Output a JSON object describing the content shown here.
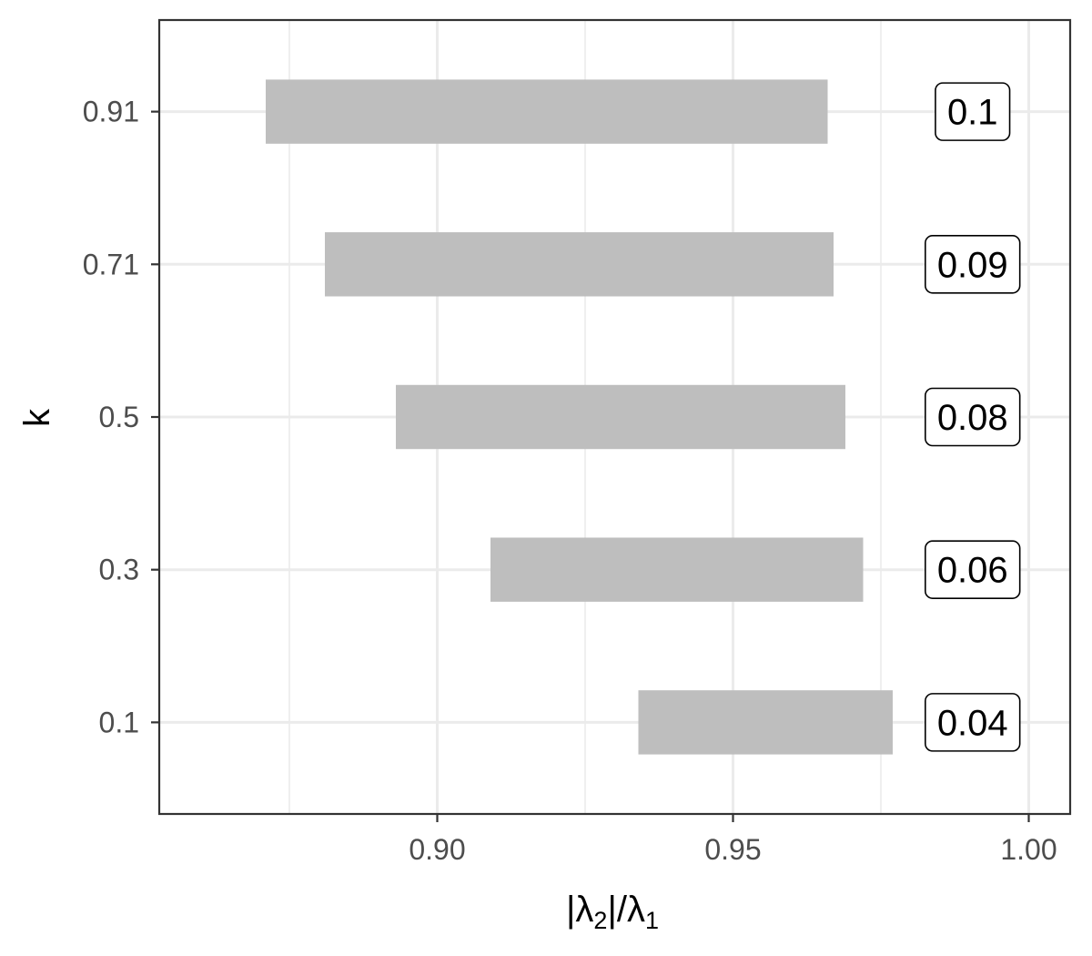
{
  "chart_data": {
    "type": "bar",
    "orientation": "horizontal-floating",
    "title": "",
    "xlabel": "|λ2|/λ1",
    "xlabel_parts": {
      "bar": "|",
      "lambda2": "λ",
      "sub2": "2",
      "slash": "|/",
      "lambda1": "λ",
      "sub1": "1"
    },
    "ylabel": "k",
    "xlim": [
      0.853,
      1.007
    ],
    "x_ticks": [
      0.9,
      0.95,
      1.0
    ],
    "x_tick_labels": [
      "0.90",
      "0.95",
      "1.00"
    ],
    "x_minor_gridlines": [
      0.875,
      0.925,
      0.975
    ],
    "categories": [
      "0.1",
      "0.3",
      "0.5",
      "0.71",
      "0.91"
    ],
    "bars": [
      {
        "k": "0.1",
        "start": 0.934,
        "end": 0.977,
        "label": "0.04"
      },
      {
        "k": "0.3",
        "start": 0.909,
        "end": 0.972,
        "label": "0.06"
      },
      {
        "k": "0.5",
        "start": 0.893,
        "end": 0.969,
        "label": "0.08"
      },
      {
        "k": "0.71",
        "start": 0.881,
        "end": 0.967,
        "label": "0.09"
      },
      {
        "k": "0.91",
        "start": 0.871,
        "end": 0.966,
        "label": "0.1"
      }
    ],
    "label_x": 0.9905,
    "grid": true,
    "bar_color": "#bebebe",
    "grid_color": "#ebebeb",
    "panel_border_color": "#333333"
  }
}
